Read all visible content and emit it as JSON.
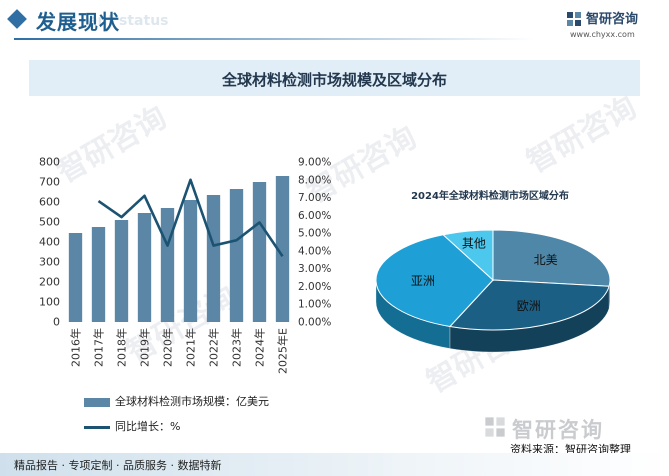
{
  "header": {
    "title": "发展现状",
    "ghost_text": "ent status"
  },
  "logo": {
    "name": "智研咨询",
    "url": "www.chyxx.com"
  },
  "banner": {
    "title": "全球材料检测市场规模及区域分布"
  },
  "watermark_text": "智研咨询",
  "chart_data": [
    {
      "type": "bar",
      "categories": [
        "2016年",
        "2017年",
        "2018年",
        "2019年",
        "2020年",
        "2021年",
        "2022年",
        "2023年",
        "2024年",
        "2025年E"
      ],
      "series": [
        {
          "name": "全球材料检测市场规模：亿美元",
          "type": "bar",
          "axis": "left",
          "values": [
            445,
            475,
            510,
            545,
            570,
            610,
            635,
            665,
            700,
            730
          ]
        },
        {
          "name": "同比增长：%",
          "type": "line",
          "axis": "right",
          "values": [
            null,
            6.8,
            5.9,
            7.1,
            4.3,
            8.0,
            4.3,
            4.6,
            5.6,
            3.7
          ]
        }
      ],
      "ylim": [
        0,
        800
      ],
      "yticks": [
        0,
        100,
        200,
        300,
        400,
        500,
        600,
        700,
        800
      ],
      "y2lim": [
        0,
        9
      ],
      "y2ticks": [
        "0.00%",
        "1.00%",
        "2.00%",
        "3.00%",
        "4.00%",
        "5.00%",
        "6.00%",
        "7.00%",
        "8.00%",
        "9.00%"
      ],
      "legend_position": "bottom",
      "grid": false,
      "colors": {
        "bar": "#5b86a5",
        "line": "#1c5372"
      }
    },
    {
      "type": "pie",
      "title": "2024年全球材料检测市场区域分布",
      "labels": [
        "北美",
        "欧洲",
        "亚洲",
        "其他"
      ],
      "values": [
        27,
        29,
        37,
        7
      ],
      "colors": [
        "#4f87a8",
        "#1c5f84",
        "#1ea0d6",
        "#4cc8ee"
      ],
      "three_d": true
    }
  ],
  "footer": {
    "logo_name": "智研咨询",
    "source": "资料来源：智研咨询整理",
    "services": "精品报告 · 专项定制 · 品质服务 · 数据特新"
  }
}
